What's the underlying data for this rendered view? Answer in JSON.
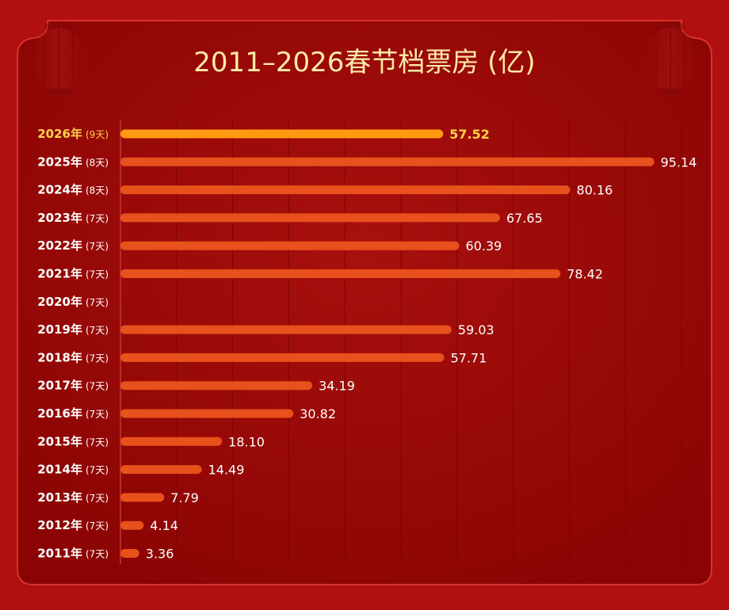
{
  "colors": {
    "background": "#b0100f",
    "panel": "#9b0605",
    "panel_border": "#d8322c",
    "bar": "#e8501c",
    "bar_highlight": "#ff9a12",
    "highlight_text": "#ffd24a",
    "title_text": "#ffe9a8",
    "grid": "#7e0403"
  },
  "chart_data": {
    "type": "bar",
    "orientation": "horizontal",
    "title": "2011–2026春节档票房 (亿)",
    "xlabel": "",
    "ylabel": "",
    "xlim": [
      0,
      100
    ],
    "grid": true,
    "highlight_index": 0,
    "categories": [
      "2026年",
      "2025年",
      "2024年",
      "2023年",
      "2022年",
      "2021年",
      "2020年",
      "2019年",
      "2018年",
      "2017年",
      "2016年",
      "2015年",
      "2014年",
      "2013年",
      "2012年",
      "2011年"
    ],
    "days": [
      "(9天)",
      "(8天)",
      "(8天)",
      "(7天)",
      "(7天)",
      "(7天)",
      "(7天)",
      "(7天)",
      "(7天)",
      "(7天)",
      "(7天)",
      "(7天)",
      "(7天)",
      "(7天)",
      "(7天)",
      "(7天)"
    ],
    "values": [
      57.52,
      95.14,
      80.16,
      67.65,
      60.39,
      78.42,
      null,
      59.03,
      57.71,
      34.19,
      30.82,
      18.1,
      14.49,
      7.79,
      4.14,
      3.36
    ],
    "value_labels": [
      "57.52",
      "95.14",
      "80.16",
      "67.65",
      "60.39",
      "78.42",
      "",
      "59.03",
      "57.71",
      "34.19",
      "30.82",
      "18.10",
      "14.49",
      "7.79",
      "4.14",
      "3.36"
    ]
  }
}
